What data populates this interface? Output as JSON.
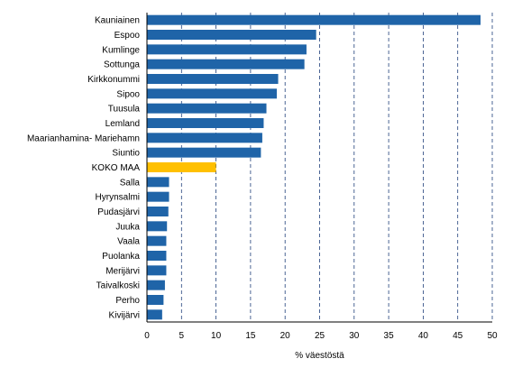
{
  "chart_data": {
    "type": "bar",
    "orientation": "horizontal",
    "title": "",
    "xlabel": "% väestöstä",
    "ylabel": "",
    "xlim": [
      0,
      50
    ],
    "xticks": [
      0,
      5,
      10,
      15,
      20,
      25,
      30,
      35,
      40,
      45,
      50
    ],
    "grid": "vertical-dashed",
    "legend": "none",
    "categories": [
      "Kauniainen",
      "Espoo",
      "Kumlinge",
      "Sottunga",
      "Kirkkonummi",
      "Sipoo",
      "Tuusula",
      "Lemland",
      "Maarianhamina- Mariehamn",
      "Siuntio",
      "KOKO MAA",
      "Salla",
      "Hyrynsalmi",
      "Pudasjärvi",
      "Juuka",
      "Vaala",
      "Puolanka",
      "Merijärvi",
      "Taivalkoski",
      "Perho",
      "Kivijärvi"
    ],
    "values": [
      48.3,
      24.5,
      23.1,
      22.8,
      19.0,
      18.8,
      17.3,
      16.9,
      16.7,
      16.5,
      10.0,
      3.2,
      3.2,
      3.1,
      2.9,
      2.8,
      2.8,
      2.8,
      2.6,
      2.4,
      2.2
    ],
    "colors": {
      "default": "#1f64a8",
      "highlight": "#ffc000",
      "highlight_category": "KOKO MAA",
      "grid": "#1f3f7a"
    }
  }
}
